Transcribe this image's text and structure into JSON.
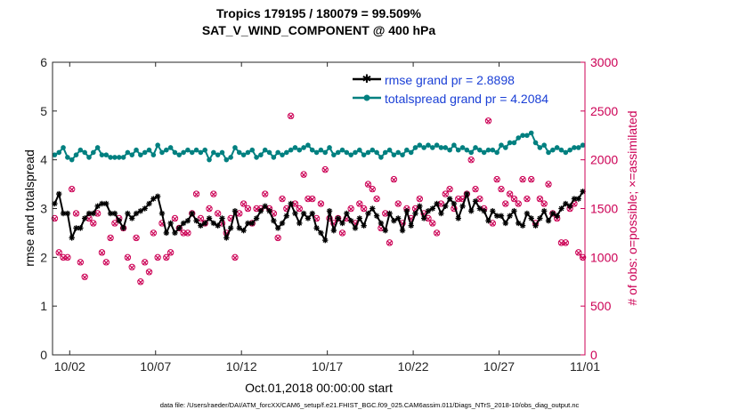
{
  "chart_data": {
    "type": "line",
    "title_line1": "Tropics 179195 / 180079 = 99.509%",
    "title_line2": "SAT_V_WIND_COMPONENT @ 400 hPa",
    "xlabel": "Oct.01,2018 00:00:00 start",
    "ylabel_left": "rmse and totalspread",
    "ylabel_right": "# of obs: o=possible; ×=assimilated",
    "xlim": [
      1,
      32
    ],
    "ylim_left": [
      0,
      6
    ],
    "ylim_right": [
      0,
      3000
    ],
    "x_ticks": [
      2,
      7,
      12,
      17,
      22,
      27,
      32
    ],
    "x_tick_labels": [
      "10/02",
      "10/07",
      "10/12",
      "10/17",
      "10/22",
      "10/27",
      "11/01"
    ],
    "y_ticks_left": [
      0,
      1,
      2,
      3,
      4,
      5,
      6
    ],
    "y_ticks_right": [
      0,
      500,
      1000,
      1500,
      2000,
      2500,
      3000
    ],
    "footnote": "data file: /Users/raeder/DAI/ATM_forcXX/CAM6_setup/f.e21.FHIST_BGC.f09_025.CAM6assim.011/Diags_NTrS_2018-10/obs_diag_output.nc",
    "colors": {
      "rmse": "#000000",
      "spread": "#008080",
      "obs": "#cc0055",
      "right_axis": "#cc0055",
      "legend_text": "#1a3fd6"
    },
    "series": [
      {
        "name": "rmse",
        "legend": "rmse grand pr = 2.8898",
        "x": [
          1.125,
          1.375,
          1.625,
          1.875,
          2.125,
          2.375,
          2.625,
          2.875,
          3.125,
          3.375,
          3.625,
          3.875,
          4.125,
          4.375,
          4.625,
          4.875,
          5.125,
          5.375,
          5.625,
          5.875,
          6.125,
          6.375,
          6.625,
          6.875,
          7.125,
          7.375,
          7.625,
          7.875,
          8.125,
          8.375,
          8.625,
          8.875,
          9.125,
          9.375,
          9.625,
          9.875,
          10.125,
          10.375,
          10.625,
          10.875,
          11.125,
          11.375,
          11.625,
          11.875,
          12.125,
          12.375,
          12.625,
          12.875,
          13.125,
          13.375,
          13.625,
          13.875,
          14.125,
          14.375,
          14.625,
          14.875,
          15.125,
          15.375,
          15.625,
          15.875,
          16.125,
          16.375,
          16.625,
          16.875,
          17.125,
          17.375,
          17.625,
          17.875,
          18.125,
          18.375,
          18.625,
          18.875,
          19.125,
          19.375,
          19.625,
          19.875,
          20.125,
          20.375,
          20.625,
          20.875,
          21.125,
          21.375,
          21.625,
          21.875,
          22.125,
          22.375,
          22.625,
          22.875,
          23.125,
          23.375,
          23.625,
          23.875,
          24.125,
          24.375,
          24.625,
          24.875,
          25.125,
          25.375,
          25.625,
          25.875,
          26.125,
          26.375,
          26.625,
          26.875,
          27.125,
          27.375,
          27.625,
          27.875,
          28.125,
          28.375,
          28.625,
          28.875,
          29.125,
          29.375,
          29.625,
          29.875,
          30.125,
          30.375,
          30.625,
          30.875,
          31.125,
          31.375,
          31.625,
          31.875
        ],
        "values": [
          3.1,
          3.3,
          2.9,
          2.9,
          2.4,
          2.6,
          2.6,
          2.8,
          2.9,
          2.9,
          3.05,
          3.1,
          3.1,
          2.9,
          2.9,
          2.75,
          2.6,
          2.9,
          2.8,
          2.9,
          2.95,
          3.0,
          3.1,
          3.2,
          3.25,
          2.9,
          2.5,
          2.7,
          2.5,
          2.6,
          2.7,
          2.75,
          2.9,
          2.75,
          2.65,
          2.7,
          2.8,
          2.7,
          2.65,
          2.8,
          2.4,
          2.6,
          2.95,
          2.6,
          2.55,
          2.7,
          2.7,
          2.8,
          2.95,
          3.05,
          2.95,
          2.75,
          2.6,
          2.7,
          2.85,
          3.1,
          2.9,
          2.7,
          2.9,
          2.8,
          2.9,
          2.6,
          2.5,
          2.35,
          2.95,
          2.55,
          2.8,
          2.7,
          2.9,
          2.75,
          2.6,
          2.8,
          2.65,
          2.9,
          3.0,
          2.85,
          2.7,
          2.55,
          2.9,
          2.75,
          2.8,
          2.55,
          2.95,
          2.65,
          2.9,
          3.05,
          2.8,
          2.95,
          3.0,
          3.1,
          2.9,
          3.05,
          3.2,
          3.1,
          2.8,
          3.05,
          3.3,
          2.95,
          3.15,
          3.0,
          2.95,
          2.75,
          2.95,
          2.85,
          2.85,
          2.7,
          2.85,
          2.95,
          2.7,
          2.65,
          2.9,
          2.8,
          2.65,
          2.8,
          2.95,
          2.75,
          2.9,
          2.85,
          3.0,
          3.1,
          3.05,
          3.2,
          3.2,
          3.35
        ]
      },
      {
        "name": "totalspread",
        "legend": "totalspread grand pr = 4.2084",
        "x": [
          1.125,
          1.375,
          1.625,
          1.875,
          2.125,
          2.375,
          2.625,
          2.875,
          3.125,
          3.375,
          3.625,
          3.875,
          4.125,
          4.375,
          4.625,
          4.875,
          5.125,
          5.375,
          5.625,
          5.875,
          6.125,
          6.375,
          6.625,
          6.875,
          7.125,
          7.375,
          7.625,
          7.875,
          8.125,
          8.375,
          8.625,
          8.875,
          9.125,
          9.375,
          9.625,
          9.875,
          10.125,
          10.375,
          10.625,
          10.875,
          11.125,
          11.375,
          11.625,
          11.875,
          12.125,
          12.375,
          12.625,
          12.875,
          13.125,
          13.375,
          13.625,
          13.875,
          14.125,
          14.375,
          14.625,
          14.875,
          15.125,
          15.375,
          15.625,
          15.875,
          16.125,
          16.375,
          16.625,
          16.875,
          17.125,
          17.375,
          17.625,
          17.875,
          18.125,
          18.375,
          18.625,
          18.875,
          19.125,
          19.375,
          19.625,
          19.875,
          20.125,
          20.375,
          20.625,
          20.875,
          21.125,
          21.375,
          21.625,
          21.875,
          22.125,
          22.375,
          22.625,
          22.875,
          23.125,
          23.375,
          23.625,
          23.875,
          24.125,
          24.375,
          24.625,
          24.875,
          25.125,
          25.375,
          25.625,
          25.875,
          26.125,
          26.375,
          26.625,
          26.875,
          27.125,
          27.375,
          27.625,
          27.875,
          28.125,
          28.375,
          28.625,
          28.875,
          29.125,
          29.375,
          29.625,
          29.875,
          30.125,
          30.375,
          30.625,
          30.875,
          31.125,
          31.375,
          31.625,
          31.875
        ],
        "values": [
          4.1,
          4.15,
          4.25,
          4.05,
          4.0,
          4.1,
          4.2,
          4.15,
          4.05,
          4.15,
          4.25,
          4.1,
          4.1,
          4.05,
          4.05,
          4.05,
          4.05,
          4.15,
          4.1,
          4.2,
          4.1,
          4.15,
          4.2,
          4.1,
          4.3,
          4.15,
          4.2,
          4.25,
          4.15,
          4.1,
          4.15,
          4.2,
          4.15,
          4.2,
          4.15,
          4.2,
          4.0,
          4.15,
          4.1,
          4.15,
          4.0,
          4.05,
          4.25,
          4.15,
          4.1,
          4.15,
          4.2,
          4.05,
          4.1,
          4.2,
          4.15,
          4.05,
          4.15,
          4.1,
          4.15,
          4.2,
          4.25,
          4.2,
          4.25,
          4.3,
          4.2,
          4.15,
          4.2,
          4.15,
          4.25,
          4.1,
          4.15,
          4.2,
          4.15,
          4.1,
          4.15,
          4.2,
          4.1,
          4.15,
          4.2,
          4.15,
          4.05,
          4.15,
          4.2,
          4.1,
          4.15,
          4.1,
          4.2,
          4.15,
          4.25,
          4.3,
          4.25,
          4.3,
          4.25,
          4.3,
          4.25,
          4.25,
          4.2,
          4.3,
          4.2,
          4.25,
          4.2,
          4.15,
          4.25,
          4.2,
          4.15,
          4.2,
          4.2,
          4.15,
          4.3,
          4.25,
          4.35,
          4.35,
          4.45,
          4.5,
          4.5,
          4.55,
          4.35,
          4.25,
          4.3,
          4.15,
          4.2,
          4.25,
          4.2,
          4.15,
          4.2,
          4.25,
          4.25,
          4.3
        ]
      },
      {
        "name": "obs_possible",
        "axis": "right",
        "x": [
          1.125,
          1.375,
          1.625,
          1.875,
          2.125,
          2.375,
          2.625,
          2.875,
          3.125,
          3.375,
          3.625,
          3.875,
          4.125,
          4.375,
          4.625,
          4.875,
          5.125,
          5.375,
          5.625,
          5.875,
          6.125,
          6.375,
          6.625,
          6.875,
          7.125,
          7.375,
          7.625,
          7.875,
          8.125,
          8.375,
          8.625,
          8.875,
          9.125,
          9.375,
          9.625,
          9.875,
          10.125,
          10.375,
          10.625,
          10.875,
          11.125,
          11.375,
          11.625,
          11.875,
          12.125,
          12.375,
          12.625,
          12.875,
          13.125,
          13.375,
          13.625,
          13.875,
          14.125,
          14.375,
          14.625,
          14.875,
          15.125,
          15.375,
          15.625,
          15.875,
          16.125,
          16.375,
          16.625,
          16.875,
          17.125,
          17.375,
          17.625,
          17.875,
          18.125,
          18.375,
          18.625,
          18.875,
          19.125,
          19.375,
          19.625,
          19.875,
          20.125,
          20.375,
          20.625,
          20.875,
          21.125,
          21.375,
          21.625,
          21.875,
          22.125,
          22.375,
          22.625,
          22.875,
          23.125,
          23.375,
          23.625,
          23.875,
          24.125,
          24.375,
          24.625,
          24.875,
          25.125,
          25.375,
          25.625,
          25.875,
          26.125,
          26.375,
          26.625,
          26.875,
          27.125,
          27.375,
          27.625,
          27.875,
          28.125,
          28.375,
          28.625,
          28.875,
          29.125,
          29.375,
          29.625,
          29.875,
          30.125,
          30.375,
          30.625,
          30.875,
          31.125,
          31.375,
          31.625,
          31.875
        ],
        "values": [
          1400,
          1050,
          1000,
          1000,
          1700,
          1450,
          950,
          800,
          1400,
          1350,
          1450,
          1050,
          950,
          1200,
          1350,
          1400,
          1300,
          1000,
          900,
          1200,
          750,
          950,
          850,
          1250,
          1000,
          1350,
          1000,
          1050,
          1400,
          1300,
          1250,
          1250,
          1450,
          1650,
          1400,
          1350,
          1500,
          1650,
          1450,
          1350,
          1250,
          1400,
          1000,
          1450,
          1550,
          1500,
          1350,
          1500,
          1500,
          1650,
          1500,
          1450,
          1200,
          1600,
          1500,
          2450,
          1550,
          1500,
          1850,
          1600,
          1600,
          1400,
          1550,
          1900,
          1400,
          1350,
          1400,
          1250,
          1400,
          1500,
          1350,
          1550,
          1500,
          1750,
          1700,
          1600,
          1300,
          1450,
          1150,
          1800,
          1550,
          1350,
          1500,
          1400,
          1500,
          1600,
          1450,
          1400,
          1350,
          1250,
          1550,
          1650,
          1700,
          1500,
          1600,
          1600,
          1650,
          2000,
          1700,
          1600,
          1500,
          2400,
          1350,
          1800,
          1700,
          1550,
          1650,
          1600,
          1550,
          1800,
          1600,
          1800,
          1350,
          1600,
          1550,
          1750,
          1450,
          1400,
          1150,
          1150,
          1500,
          1550,
          1050,
          1000
        ]
      },
      {
        "name": "obs_assimilated",
        "axis": "right",
        "x": [
          1.125,
          1.375,
          1.625,
          1.875,
          2.125,
          2.375,
          2.625,
          2.875,
          3.125,
          3.375,
          3.625,
          3.875,
          4.125,
          4.375,
          4.625,
          4.875,
          5.125,
          5.375,
          5.625,
          5.875,
          6.125,
          6.375,
          6.625,
          6.875,
          7.125,
          7.375,
          7.625,
          7.875,
          8.125,
          8.375,
          8.625,
          8.875,
          9.125,
          9.375,
          9.625,
          9.875,
          10.125,
          10.375,
          10.625,
          10.875,
          11.125,
          11.375,
          11.625,
          11.875,
          12.125,
          12.375,
          12.625,
          12.875,
          13.125,
          13.375,
          13.625,
          13.875,
          14.125,
          14.375,
          14.625,
          14.875,
          15.125,
          15.375,
          15.625,
          15.875,
          16.125,
          16.375,
          16.625,
          16.875,
          17.125,
          17.375,
          17.625,
          17.875,
          18.125,
          18.375,
          18.625,
          18.875,
          19.125,
          19.375,
          19.625,
          19.875,
          20.125,
          20.375,
          20.625,
          20.875,
          21.125,
          21.375,
          21.625,
          21.875,
          22.125,
          22.375,
          22.625,
          22.875,
          23.125,
          23.375,
          23.625,
          23.875,
          24.125,
          24.375,
          24.625,
          24.875,
          25.125,
          25.375,
          25.625,
          25.875,
          26.125,
          26.375,
          26.625,
          26.875,
          27.125,
          27.375,
          27.625,
          27.875,
          28.125,
          28.375,
          28.625,
          28.875,
          29.125,
          29.375,
          29.625,
          29.875,
          30.125,
          30.375,
          30.625,
          30.875,
          31.125,
          31.375,
          31.625,
          31.875
        ],
        "values": [
          1395,
          1045,
          995,
          995,
          1695,
          1445,
          945,
          795,
          1395,
          1345,
          1445,
          1045,
          945,
          1195,
          1345,
          1395,
          1295,
          995,
          895,
          1195,
          745,
          945,
          845,
          1245,
          995,
          1345,
          995,
          1045,
          1395,
          1295,
          1245,
          1245,
          1445,
          1645,
          1395,
          1345,
          1495,
          1645,
          1445,
          1345,
          1245,
          1395,
          995,
          1445,
          1545,
          1495,
          1345,
          1495,
          1495,
          1645,
          1495,
          1445,
          1195,
          1595,
          1495,
          2445,
          1545,
          1495,
          1845,
          1595,
          1595,
          1395,
          1545,
          1895,
          1395,
          1345,
          1395,
          1245,
          1395,
          1495,
          1345,
          1545,
          1495,
          1745,
          1695,
          1595,
          1295,
          1445,
          1145,
          1795,
          1545,
          1345,
          1495,
          1395,
          1495,
          1595,
          1445,
          1395,
          1345,
          1245,
          1545,
          1645,
          1695,
          1495,
          1595,
          1595,
          1645,
          1995,
          1695,
          1595,
          1495,
          2395,
          1345,
          1795,
          1695,
          1545,
          1645,
          1595,
          1545,
          1795,
          1595,
          1795,
          1345,
          1595,
          1545,
          1745,
          1445,
          1395,
          1145,
          1145,
          1495,
          1545,
          1045,
          995
        ]
      }
    ]
  }
}
